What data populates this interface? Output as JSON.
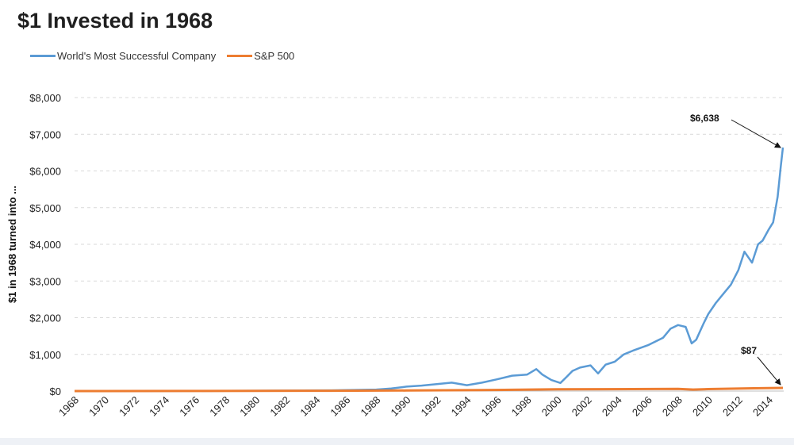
{
  "chart_data": {
    "type": "line",
    "title": "$1 Invested in 1968",
    "ylabel": "$1 in 1968 turned into ...",
    "xlabel": "",
    "xlim": [
      1968,
      2015
    ],
    "ylim": [
      0,
      8000
    ],
    "y_ticks": [
      0,
      1000,
      2000,
      3000,
      4000,
      5000,
      6000,
      7000,
      8000
    ],
    "y_tick_labels": [
      "$0",
      "$1,000",
      "$2,000",
      "$3,000",
      "$4,000",
      "$5,000",
      "$6,000",
      "$7,000",
      "$8,000"
    ],
    "x_ticks": [
      1968,
      1970,
      1972,
      1974,
      1976,
      1978,
      1980,
      1982,
      1984,
      1986,
      1988,
      1990,
      1992,
      1994,
      1996,
      1998,
      2000,
      2002,
      2004,
      2006,
      2008,
      2010,
      2012,
      2014
    ],
    "x_tick_labels": [
      "1968",
      "1970",
      "1972",
      "1974",
      "1976",
      "1978",
      "1980",
      "1982",
      "1984",
      "1986",
      "1988",
      "1990",
      "1992",
      "1994",
      "1996",
      "1998",
      "2000",
      "2002",
      "2004",
      "2006",
      "2008",
      "2010",
      "2012",
      "2014"
    ],
    "grid": "horizontal-dashed",
    "legend_position": "top-left",
    "series": [
      {
        "name": "World's Most Successful Company",
        "color": "#5b9bd5",
        "x": [
          1968,
          1975,
          1980,
          1985,
          1988,
          1989,
          1990,
          1991,
          1992,
          1993,
          1994,
          1995,
          1996,
          1997,
          1998,
          1998.6,
          1999,
          1999.6,
          2000.2,
          2000.6,
          2001,
          2001.5,
          2002.2,
          2002.7,
          2003.2,
          2003.8,
          2004.4,
          2005,
          2006,
          2007,
          2007.5,
          2008,
          2008.5,
          2008.9,
          2009.2,
          2009.7,
          2010,
          2010.5,
          2011,
          2011.5,
          2012,
          2012.4,
          2012.9,
          2013.3,
          2013.6,
          2014,
          2014.3,
          2014.6,
          2014.8,
          2014.95
        ],
        "y": [
          1,
          3,
          8,
          20,
          40,
          70,
          120,
          150,
          190,
          230,
          160,
          230,
          320,
          420,
          450,
          600,
          450,
          300,
          220,
          380,
          550,
          640,
          700,
          480,
          720,
          800,
          1000,
          1100,
          1250,
          1450,
          1700,
          1800,
          1750,
          1300,
          1400,
          1850,
          2100,
          2400,
          2650,
          2900,
          3300,
          3800,
          3500,
          4000,
          4100,
          4400,
          4600,
          5300,
          6100,
          6638
        ]
      },
      {
        "name": "S&P 500",
        "color": "#ed7d31",
        "x": [
          1968,
          1975,
          1980,
          1985,
          1990,
          1995,
          2000,
          2005,
          2008,
          2009,
          2010,
          2013,
          2014,
          2014.95
        ],
        "y": [
          1,
          2,
          4,
          8,
          15,
          25,
          50,
          55,
          60,
          40,
          55,
          75,
          82,
          87
        ]
      }
    ],
    "annotations": [
      {
        "text": "$6,638",
        "x": 2014.95,
        "y": 6638
      },
      {
        "text": "$87",
        "x": 2014.95,
        "y": 87
      }
    ]
  }
}
